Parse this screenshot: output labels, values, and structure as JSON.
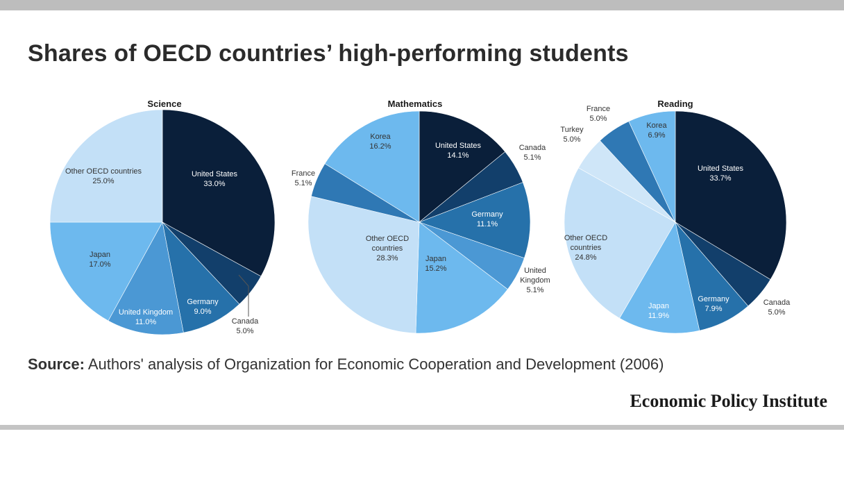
{
  "header": {
    "title": "Shares of OECD countries’ high-performing students"
  },
  "footer": {
    "source_label": "Source:",
    "source_text": " Authors' analysis of Organization for Economic Cooperation and Development (2006)",
    "brand": "Economic Policy Institute"
  },
  "colors": {
    "United States": "#0a1f3a",
    "Canada": "#123f6b",
    "Germany": "#2671aa",
    "United Kingdom": "#4b98d4",
    "Japan": "#6db9ee",
    "Korea": "#6db9ee",
    "France": "#2f78b4",
    "Turkey": "#cfe6f8",
    "Other OECD countries": "#c3e0f7"
  },
  "chart_data": [
    {
      "type": "pie",
      "title": "Science",
      "slices": [
        {
          "label": "United States",
          "text": [
            "United States",
            "33.0%"
          ],
          "value": 33.0
        },
        {
          "label": "Canada",
          "text": [
            "Canada",
            "5.0%"
          ],
          "value": 5.0
        },
        {
          "label": "Germany",
          "text": [
            "Germany",
            "9.0%"
          ],
          "value": 9.0
        },
        {
          "label": "United Kingdom",
          "text": [
            "United Kingdom",
            "11.0%"
          ],
          "value": 11.0
        },
        {
          "label": "Japan",
          "text": [
            "Japan",
            "17.0%"
          ],
          "value": 17.0
        },
        {
          "label": "Other OECD countries",
          "text": [
            "Other OECD countries",
            "25.0%"
          ],
          "value": 25.0
        }
      ]
    },
    {
      "type": "pie",
      "title": "Mathematics",
      "slices": [
        {
          "label": "United States",
          "text": [
            "United States",
            "14.1%"
          ],
          "value": 14.1
        },
        {
          "label": "Canada",
          "text": [
            "Canada",
            "5.1%"
          ],
          "value": 5.1
        },
        {
          "label": "Germany",
          "text": [
            "Germany",
            "11.1%"
          ],
          "value": 11.1
        },
        {
          "label": "United Kingdom",
          "text": [
            "United",
            "Kingdom",
            "5.1%"
          ],
          "value": 5.1
        },
        {
          "label": "Japan",
          "text": [
            "Japan",
            "15.2%"
          ],
          "value": 15.2
        },
        {
          "label": "Other OECD countries",
          "text": [
            "Other OECD",
            "countries",
            "28.3%"
          ],
          "value": 28.3
        },
        {
          "label": "France",
          "text": [
            "France",
            "5.1%"
          ],
          "value": 5.1
        },
        {
          "label": "Korea",
          "text": [
            "Korea",
            "16.2%"
          ],
          "value": 16.2
        }
      ]
    },
    {
      "type": "pie",
      "title": "Reading",
      "slices": [
        {
          "label": "United States",
          "text": [
            "United States",
            "33.7%"
          ],
          "value": 33.7
        },
        {
          "label": "Canada",
          "text": [
            "Canada",
            "5.0%"
          ],
          "value": 5.0
        },
        {
          "label": "Germany",
          "text": [
            "Germany",
            "7.9%"
          ],
          "value": 7.9
        },
        {
          "label": "Japan",
          "text": [
            "Japan",
            "11.9%"
          ],
          "value": 11.9
        },
        {
          "label": "Other OECD countries",
          "text": [
            "Other OECD",
            "countries",
            "24.8%"
          ],
          "value": 24.8
        },
        {
          "label": "Turkey",
          "text": [
            "Turkey",
            "5.0%"
          ],
          "value": 5.0
        },
        {
          "label": "France",
          "text": [
            "France",
            "5.0%"
          ],
          "value": 5.0
        },
        {
          "label": "Korea",
          "text": [
            "Korea",
            "6.9%"
          ],
          "value": 6.9
        }
      ]
    }
  ]
}
